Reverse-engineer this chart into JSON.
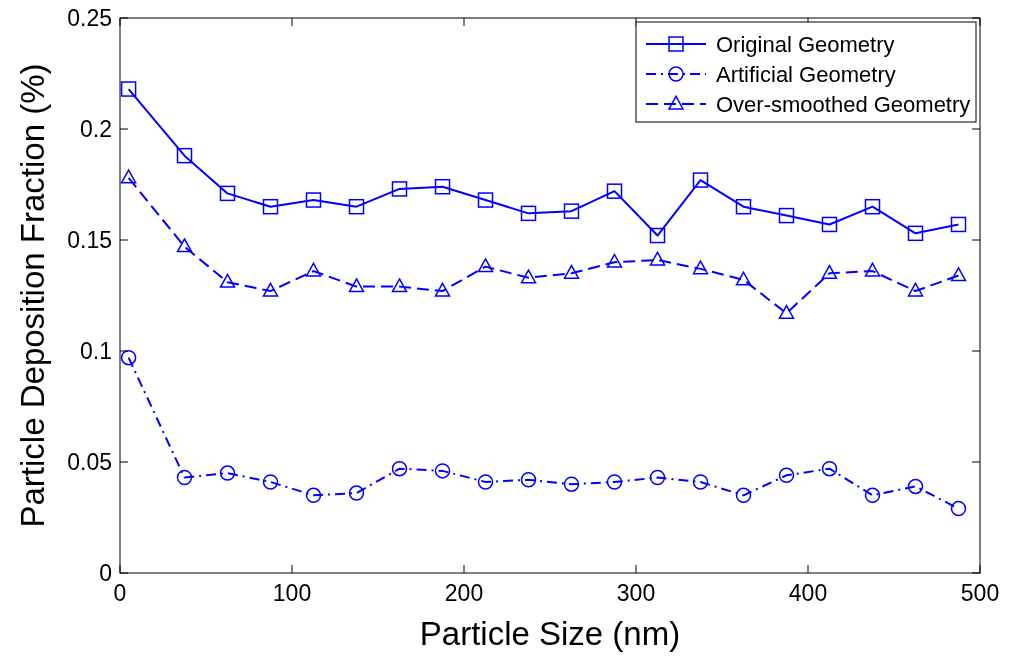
{
  "chart_data": {
    "type": "line",
    "xlabel": "Particle Size (nm)",
    "ylabel": "Particle Deposition Fraction (%)",
    "x": [
      5,
      37.5,
      62.5,
      87.5,
      112.5,
      137.5,
      162.5,
      187.5,
      212.5,
      237.5,
      262.5,
      287.5,
      312.5,
      337.5,
      362.5,
      387.5,
      412.5,
      437.5,
      462.5,
      487.5
    ],
    "series": [
      {
        "name": "Original Geometry",
        "color": "#0000ff",
        "marker": "square",
        "line_style": "solid",
        "values": [
          0.218,
          0.188,
          0.171,
          0.165,
          0.168,
          0.165,
          0.173,
          0.174,
          0.168,
          0.162,
          0.163,
          0.172,
          0.152,
          0.177,
          0.165,
          0.161,
          0.157,
          0.165,
          0.153,
          0.157
        ]
      },
      {
        "name": "Artificial Geometry",
        "color": "#0000ff",
        "marker": "circle",
        "line_style": "dotted",
        "values": [
          0.097,
          0.043,
          0.045,
          0.041,
          0.035,
          0.036,
          0.047,
          0.046,
          0.041,
          0.042,
          0.04,
          0.041,
          0.043,
          0.041,
          0.035,
          0.044,
          0.047,
          0.035,
          0.039,
          0.029
        ]
      },
      {
        "name": "Over-smoothed Geometry",
        "color": "#0000ff",
        "marker": "triangle",
        "line_style": "dashed",
        "values": [
          0.178,
          0.147,
          0.131,
          0.127,
          0.136,
          0.129,
          0.129,
          0.127,
          0.138,
          0.133,
          0.135,
          0.14,
          0.141,
          0.137,
          0.132,
          0.117,
          0.135,
          0.136,
          0.127,
          0.134
        ]
      }
    ],
    "xlim": [
      0,
      500
    ],
    "xticks": [
      0,
      100,
      200,
      300,
      400,
      500
    ],
    "ylim": [
      0,
      0.25
    ],
    "yticks": [
      0,
      0.05,
      0.1,
      0.15,
      0.2,
      0.25
    ],
    "grid": false,
    "legend": "top right"
  }
}
